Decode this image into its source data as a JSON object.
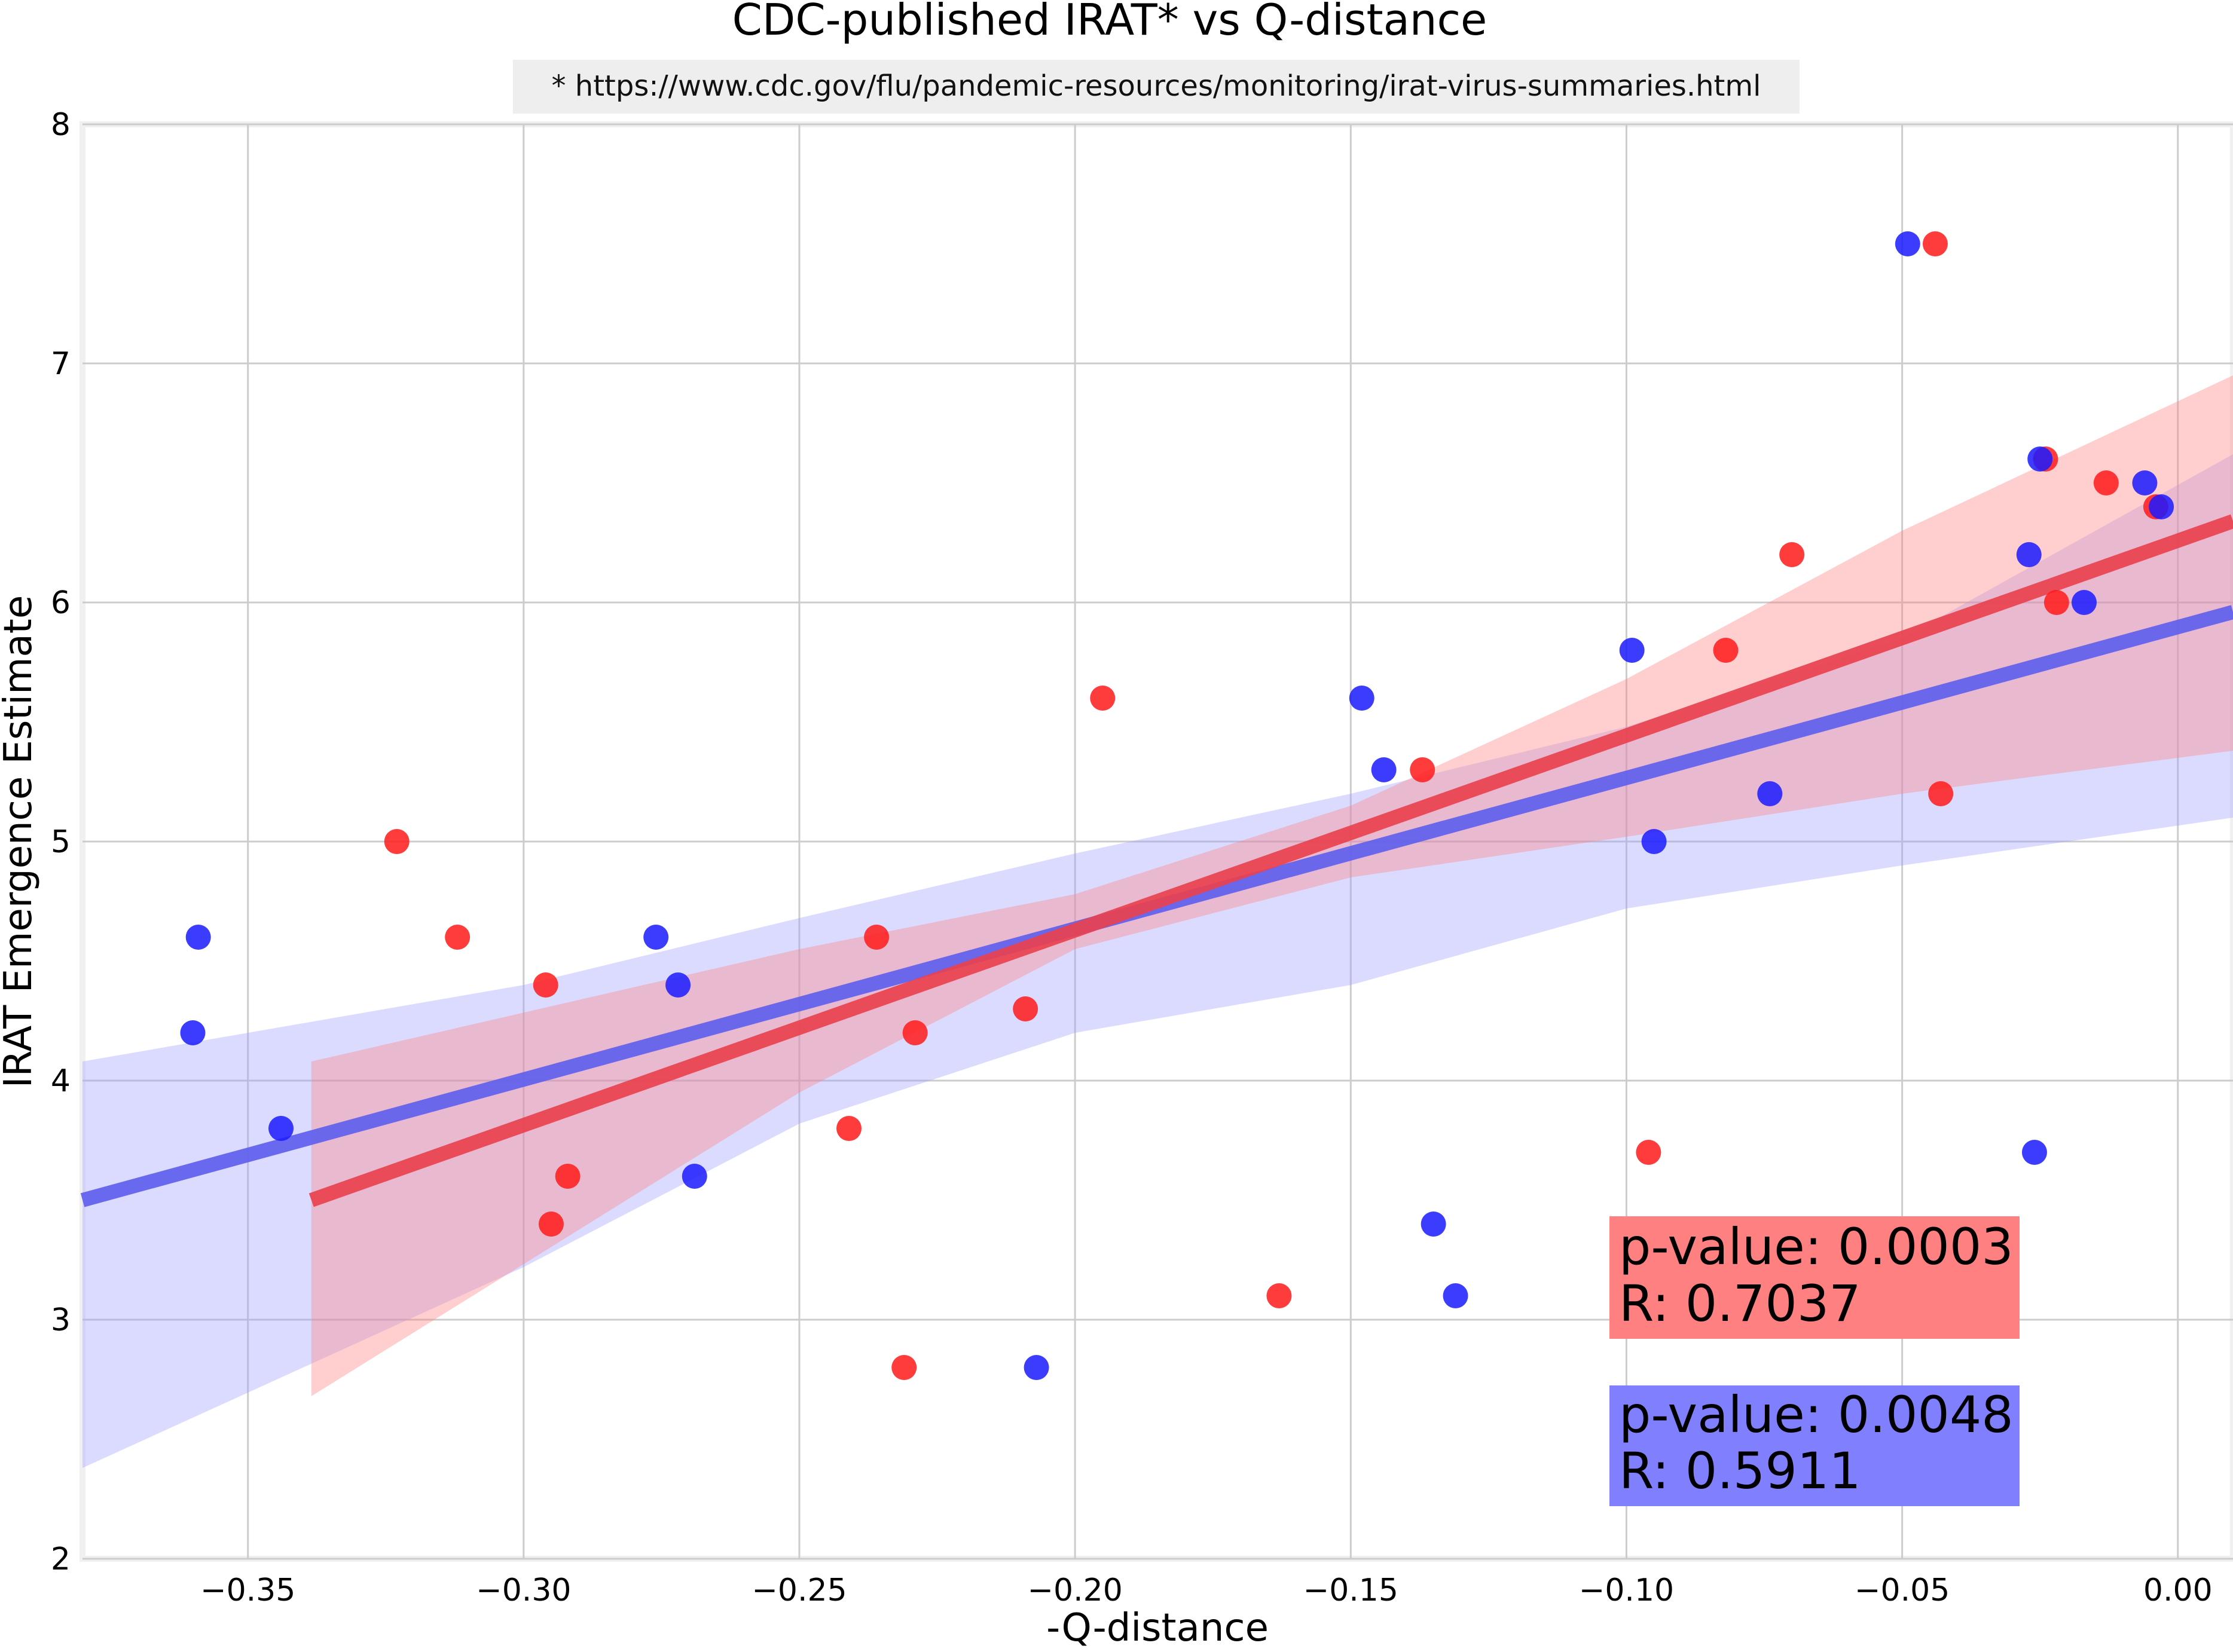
{
  "chart_data": {
    "type": "scatter",
    "title": "CDC-published IRAT* vs Q-distance",
    "subtitle": "* https://www.cdc.gov/flu/pandemic-resources/monitoring/irat-virus-summaries.html",
    "xlabel": "-Q-distance",
    "ylabel": "IRAT Emergence Estimate",
    "xlim": [
      -0.38,
      0.01
    ],
    "ylim": [
      2,
      8
    ],
    "xticks": [
      -0.35,
      -0.3,
      -0.25,
      -0.2,
      -0.15,
      -0.1,
      -0.05,
      0.0
    ],
    "xtick_labels": [
      "−0.35",
      "−0.30",
      "−0.25",
      "−0.20",
      "−0.15",
      "−0.10",
      "−0.05",
      "0.00"
    ],
    "yticks": [
      2,
      3,
      4,
      5,
      6,
      7,
      8
    ],
    "ytick_labels": [
      "2",
      "3",
      "4",
      "5",
      "6",
      "7",
      "8"
    ],
    "grid": true,
    "series": [
      {
        "color": "#ff1a1a",
        "line_color": "#e8414f",
        "band_color": "#ff8080",
        "points": [
          [
            -0.323,
            5.0
          ],
          [
            -0.312,
            4.6
          ],
          [
            -0.296,
            4.4
          ],
          [
            -0.295,
            3.4
          ],
          [
            -0.292,
            3.6
          ],
          [
            -0.236,
            4.6
          ],
          [
            -0.241,
            3.8
          ],
          [
            -0.231,
            2.8
          ],
          [
            -0.229,
            4.2
          ],
          [
            -0.209,
            4.3
          ],
          [
            -0.195,
            5.6
          ],
          [
            -0.163,
            3.1
          ],
          [
            -0.137,
            5.3
          ],
          [
            -0.096,
            3.7
          ],
          [
            -0.082,
            5.8
          ],
          [
            -0.07,
            6.2
          ],
          [
            -0.044,
            7.5
          ],
          [
            -0.043,
            5.2
          ],
          [
            -0.024,
            6.6
          ],
          [
            -0.022,
            6.0
          ],
          [
            -0.013,
            6.5
          ],
          [
            -0.004,
            6.4
          ]
        ],
        "regression": {
          "x_start": -0.3385,
          "y_start": 3.5,
          "x_end": 0.01,
          "y_end": 6.34
        },
        "band_lower": [
          [
            -0.3385,
            2.68
          ],
          [
            -0.25,
            3.95
          ],
          [
            -0.2,
            4.55
          ],
          [
            -0.15,
            4.85
          ],
          [
            -0.1,
            5.02
          ],
          [
            -0.05,
            5.2
          ],
          [
            0.01,
            5.38
          ]
        ],
        "band_upper": [
          [
            -0.3385,
            4.08
          ],
          [
            -0.25,
            4.55
          ],
          [
            -0.2,
            4.78
          ],
          [
            -0.15,
            5.15
          ],
          [
            -0.1,
            5.68
          ],
          [
            -0.05,
            6.3
          ],
          [
            0.01,
            6.95
          ]
        ],
        "stats": {
          "p_value": "p-value: 0.0003",
          "r": "R: 0.7037"
        }
      },
      {
        "color": "#1a1aff",
        "line_color": "#6060ee",
        "band_color": "#a0a0ff",
        "points": [
          [
            -0.36,
            4.2
          ],
          [
            -0.359,
            4.6
          ],
          [
            -0.344,
            3.8
          ],
          [
            -0.276,
            4.6
          ],
          [
            -0.272,
            4.4
          ],
          [
            -0.269,
            3.6
          ],
          [
            -0.207,
            2.8
          ],
          [
            -0.148,
            5.6
          ],
          [
            -0.144,
            5.3
          ],
          [
            -0.135,
            3.4
          ],
          [
            -0.131,
            3.1
          ],
          [
            -0.099,
            5.8
          ],
          [
            -0.095,
            5.0
          ],
          [
            -0.074,
            5.2
          ],
          [
            -0.049,
            7.5
          ],
          [
            -0.027,
            6.2
          ],
          [
            -0.026,
            3.7
          ],
          [
            -0.025,
            6.6
          ],
          [
            -0.017,
            6.0
          ],
          [
            -0.006,
            6.5
          ],
          [
            -0.003,
            6.4
          ]
        ],
        "regression": {
          "x_start": -0.38,
          "y_start": 3.5,
          "x_end": 0.01,
          "y_end": 5.96
        },
        "band_lower": [
          [
            -0.38,
            2.38
          ],
          [
            -0.3,
            3.22
          ],
          [
            -0.25,
            3.82
          ],
          [
            -0.2,
            4.2
          ],
          [
            -0.15,
            4.4
          ],
          [
            -0.1,
            4.72
          ],
          [
            -0.05,
            4.9
          ],
          [
            0.01,
            5.1
          ]
        ],
        "band_upper": [
          [
            -0.38,
            4.08
          ],
          [
            -0.3,
            4.4
          ],
          [
            -0.25,
            4.68
          ],
          [
            -0.2,
            4.95
          ],
          [
            -0.15,
            5.2
          ],
          [
            -0.1,
            5.48
          ],
          [
            -0.05,
            5.85
          ],
          [
            0.01,
            6.62
          ]
        ],
        "stats": {
          "p_value": "p-value: 0.0048",
          "r": "R: 0.5911"
        }
      }
    ]
  }
}
